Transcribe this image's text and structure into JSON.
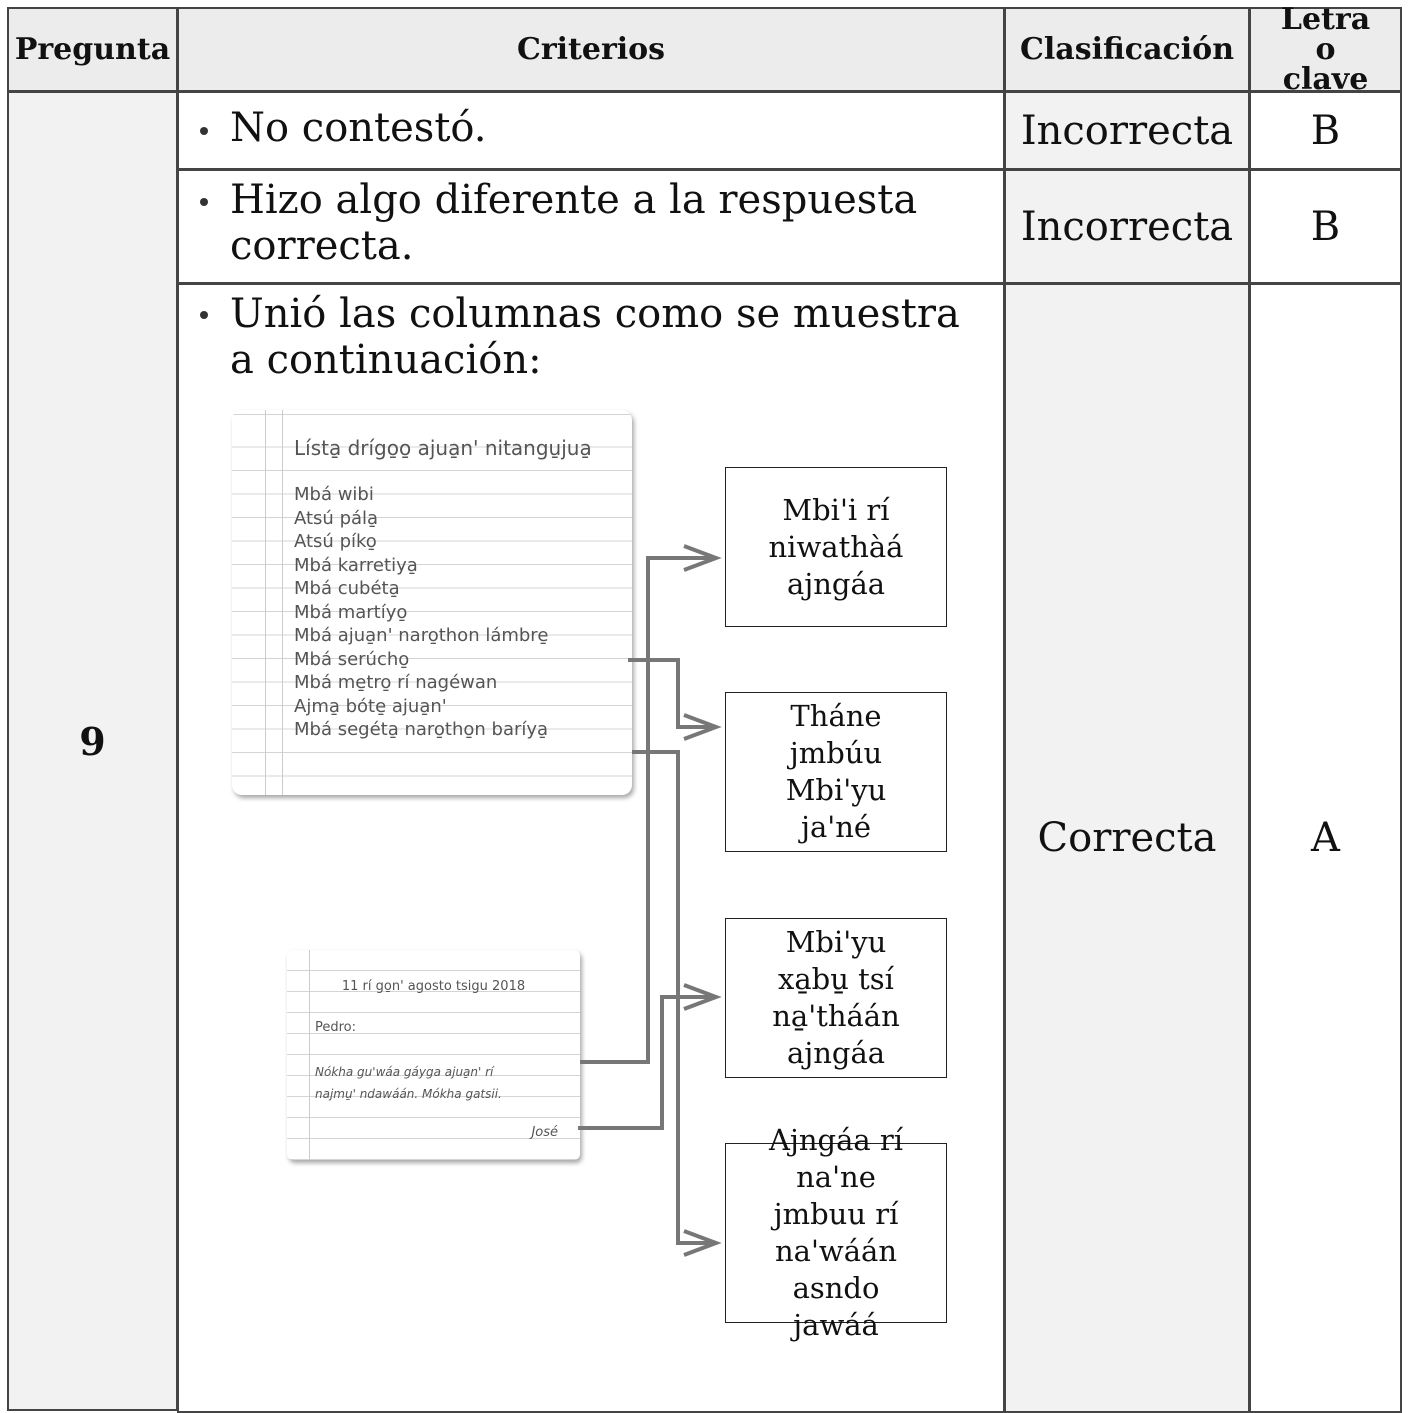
{
  "table": {
    "header": [
      "Pregunta",
      "Criterios",
      "Clasificación",
      "Letra o clave"
    ],
    "question": "9",
    "rows": [
      {
        "criterion": "No contestó.",
        "classification": "Incorrecta",
        "key": "B"
      },
      {
        "criterion": "Hizo algo diferente a la respuesta correcta.",
        "classification": "Incorrecta",
        "key": "B"
      },
      {
        "criterion": "Unió las columnas como se muestra a continuación:",
        "classification": "Correcta",
        "key": "A"
      }
    ]
  },
  "figure": {
    "list_title": "Lísta̱ drígo̱o̱ ajua̱n' nitangu̱jua̱",
    "list_items": [
      "Mbá wibi",
      "Atsú pála̱",
      "Atsú píko̱",
      "Mbá karretiya̱",
      "Mbá cubéta̱",
      "Mbá martíyo̱",
      "Mbá ajua̱n' naro̱thon lámbre̱",
      "Mbá serúcho̱",
      "Mbá me̱tro̱ rí nagéwan",
      "Ajma̱ bóte̱ ajua̱n'",
      "Mbá segéta̱ naro̱tho̱n baríya̱"
    ],
    "letter": {
      "date": "11 rí go̱n' agosto tsigu 2018",
      "greeting": "Pedro:",
      "body": [
        "Nókha gu'wáa gáyga ajua̱n' rí",
        "najmu̱' ndawáán. Mókha gatsii."
      ],
      "signature": "José"
    },
    "boxes": [
      "Mbi'i rí niwathàá ajngáa",
      "Tháne jmbúu Mbi'yu ja'né",
      "Mbi'yu xa̱bu̱ tsí na̱'tháán ajngáa",
      "Ajngáa rí na'ne jmbuu rí na'wáán asndo jawáá"
    ]
  }
}
